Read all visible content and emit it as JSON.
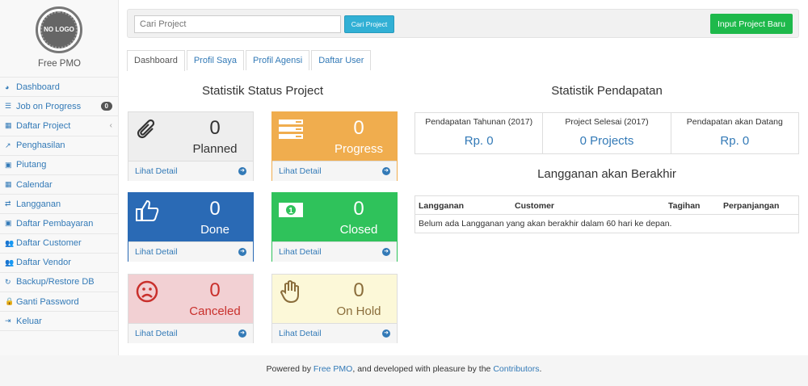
{
  "sidebar": {
    "logo_text": "NO LOGO",
    "brand": "Free PMO",
    "items": [
      {
        "label": "Dashboard",
        "icon": "dashboard-icon",
        "glyph": "◕"
      },
      {
        "label": "Job on Progress",
        "icon": "tasks-icon",
        "glyph": "☰",
        "badge": "0"
      },
      {
        "label": "Daftar Project",
        "icon": "table-icon",
        "glyph": "▦",
        "chevron": "‹"
      },
      {
        "label": "Penghasilan",
        "icon": "line-chart-icon",
        "glyph": "↗"
      },
      {
        "label": "Piutang",
        "icon": "money-icon",
        "glyph": "▣"
      },
      {
        "label": "Calendar",
        "icon": "calendar-icon",
        "glyph": "▦"
      },
      {
        "label": "Langganan",
        "icon": "retweet-icon",
        "glyph": "⇄"
      },
      {
        "label": "Daftar Pembayaran",
        "icon": "money-icon",
        "glyph": "▣"
      },
      {
        "label": "Daftar Customer",
        "icon": "users-icon",
        "glyph": "👥"
      },
      {
        "label": "Daftar Vendor",
        "icon": "users-icon",
        "glyph": "👥"
      },
      {
        "label": "Backup/Restore DB",
        "icon": "refresh-icon",
        "glyph": "↻"
      },
      {
        "label": "Ganti Password",
        "icon": "lock-icon",
        "glyph": "🔒"
      },
      {
        "label": "Keluar",
        "icon": "sign-out-icon",
        "glyph": "⇥"
      }
    ]
  },
  "topbar": {
    "search_placeholder": "Cari Project",
    "search_button": "Cari Project",
    "new_button": "Input Project Baru"
  },
  "tabs": [
    "Dashboard",
    "Profil Saya",
    "Profil Agensi",
    "Daftar User"
  ],
  "status": {
    "title": "Statistik Status Project",
    "detail_label": "Lihat Detail",
    "panels": [
      {
        "label": "Planned",
        "count": "0",
        "icon": "paperclip-icon",
        "bg": "#eeeeee",
        "color": "#333333"
      },
      {
        "label": "Progress",
        "count": "0",
        "icon": "tasks-icon",
        "bg": "#f0ad4e",
        "color": "#ffffff"
      },
      {
        "label": "Done",
        "count": "0",
        "icon": "thumbs-up-icon",
        "bg": "#2a6ab5",
        "color": "#ffffff"
      },
      {
        "label": "Closed",
        "count": "0",
        "icon": "money-icon",
        "bg": "#2fc25b",
        "color": "#ffffff"
      },
      {
        "label": "Canceled",
        "count": "0",
        "icon": "frown-icon",
        "bg": "#f2d0d3",
        "color": "#c9302c"
      },
      {
        "label": "On Hold",
        "count": "0",
        "icon": "hand-icon",
        "bg": "#fcf8d8",
        "color": "#8a6d3b"
      }
    ]
  },
  "revenue": {
    "title": "Statistik Pendapatan",
    "cells": [
      {
        "label": "Pendapatan Tahunan (2017)",
        "value": "Rp. 0"
      },
      {
        "label": "Project Selesai (2017)",
        "value": "0 Projects"
      },
      {
        "label": "Pendapatan akan Datang",
        "value": "Rp. 0"
      }
    ]
  },
  "subscriptions": {
    "title": "Langganan akan Berakhir",
    "columns": [
      "Langganan",
      "Customer",
      "Tagihan",
      "Perpanjangan"
    ],
    "empty": "Belum ada Langganan yang akan berakhir dalam 60 hari ke depan."
  },
  "footer": {
    "prefix": "Powered by ",
    "link1": "Free PMO",
    "middle": ", and developed with pleasure by the ",
    "link2": "Contributors",
    "suffix": "."
  }
}
